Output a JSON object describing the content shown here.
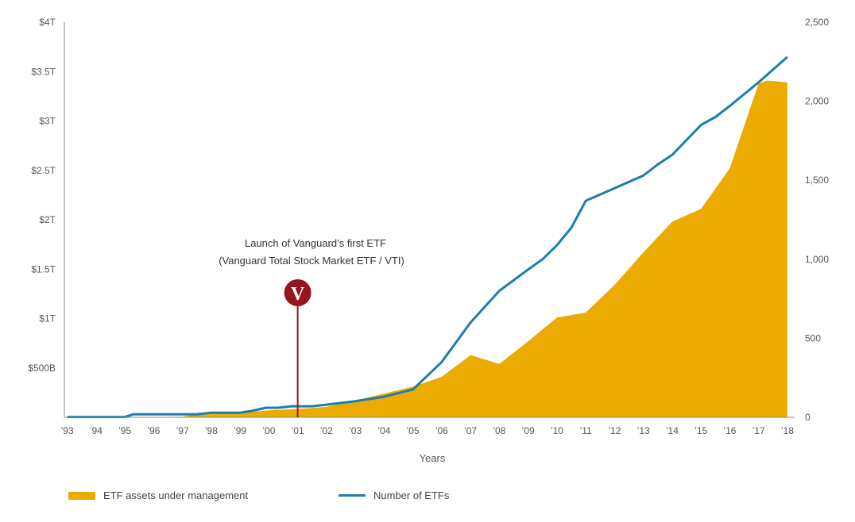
{
  "chart_data": {
    "type": "area",
    "xlabel": "Years",
    "categories": [
      "’93",
      "’94",
      "’95",
      "’96",
      "’97",
      "’98",
      "’99",
      "’00",
      "’01",
      "’02",
      "’03",
      "’04",
      "’05",
      "’06",
      "’07",
      "’08",
      "’09",
      "’10",
      "’11",
      "’12",
      "’13",
      "’14",
      "’15",
      "’16",
      "’17",
      "’18"
    ],
    "y_left": {
      "ticks": [
        "$500B",
        "$1T",
        "$1.5T",
        "$2T",
        "$2.5T",
        "$3T",
        "$3.5T",
        "$4T"
      ],
      "ticks_values": [
        500,
        1000,
        1500,
        2000,
        2500,
        3000,
        3500,
        4000
      ],
      "range": [
        0,
        4000
      ],
      "unit": "billions USD"
    },
    "y_right": {
      "ticks": [
        "0",
        "500",
        "1,000",
        "1,500",
        "2,000",
        "2,500"
      ],
      "ticks_values": [
        0,
        500,
        1000,
        1500,
        2000,
        2500
      ],
      "range": [
        0,
        2500
      ]
    },
    "series": [
      {
        "name": "ETF assets under management",
        "axis": "left",
        "kind": "area",
        "color": "#ebab00",
        "x": [
          1993,
          1994,
          1995,
          1996,
          1997,
          1997.5,
          1998,
          1999,
          2000,
          2001,
          2002,
          2003,
          2004,
          2005,
          2006,
          2007,
          2008,
          2009,
          2010,
          2011,
          2012,
          2013,
          2014,
          2015,
          2016,
          2017,
          2017.3,
          2018
        ],
        "values": [
          0,
          1,
          2,
          3,
          5,
          30,
          35,
          45,
          70,
          85,
          105,
          170,
          240,
          310,
          410,
          630,
          540,
          770,
          1010,
          1060,
          1340,
          1670,
          1980,
          2110,
          2520,
          3380,
          3410,
          3390
        ]
      },
      {
        "name": "Number of ETFs",
        "axis": "right",
        "kind": "line",
        "color": "#1a7fae",
        "x": [
          1993,
          1994,
          1995,
          1995.3,
          1996,
          1997,
          1997.5,
          1998,
          1999,
          1999.4,
          1999.9,
          2000.3,
          2000.8,
          2001,
          2001.5,
          2002,
          2003,
          2004,
          2005,
          2006,
          2007,
          2008,
          2009,
          2009.5,
          2010,
          2010.5,
          2011,
          2012,
          2013,
          2013.5,
          2014,
          2015,
          2015.5,
          2016,
          2017,
          2018
        ],
        "values": [
          2,
          2,
          2,
          19,
          19,
          19,
          19,
          29,
          29,
          40,
          60,
          60,
          70,
          70,
          70,
          80,
          102,
          130,
          176,
          350,
          600,
          800,
          935,
          1000,
          1089,
          1200,
          1370,
          1450,
          1530,
          1600,
          1660,
          1850,
          1900,
          1970,
          2120,
          2280
        ]
      }
    ],
    "annotation": {
      "x": 2001,
      "line1": "Launch of Vanguard’s first ETF",
      "line2": "(Vanguard Total Stock Market ETF / VTI)",
      "marker_letter": "V",
      "marker_color": "#96151d"
    },
    "grid": false,
    "legend_position": "bottom-left"
  },
  "legend": {
    "items": [
      {
        "label": "ETF assets under management",
        "color": "#ebab00"
      },
      {
        "label": "Number of ETFs",
        "color": "#1a7fae"
      }
    ]
  }
}
